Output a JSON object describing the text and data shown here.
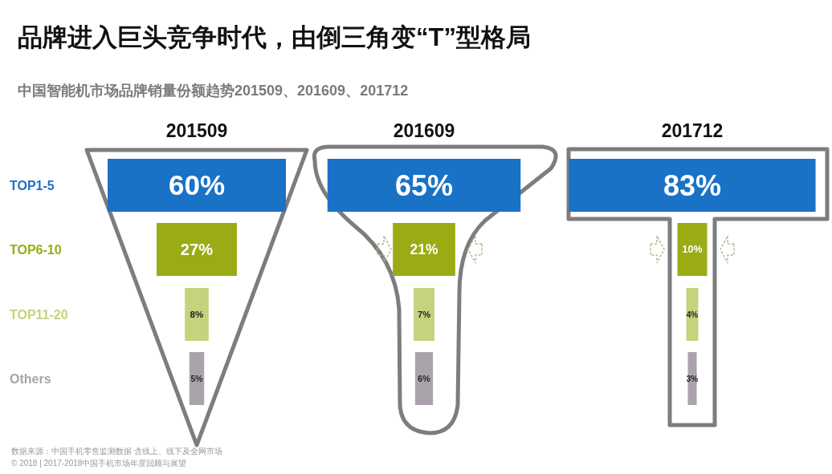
{
  "chart_data": [
    {
      "type": "other",
      "title": "品牌进入巨头竞争时代，由倒三角变“T”型格局",
      "subtitle": "中国智能机市场品牌销量份额趋势201509、201609、201712",
      "annotations": [
        "数据来源：中国手机零售监测数据 含线上、线下及全网市场",
        "© 2018 | 2017-2018中国手机市场年度回顾与展望"
      ]
    },
    {
      "type": "other",
      "title": "201509",
      "categories": [
        "TOP1-5",
        "TOP6-10",
        "TOP11-20",
        "Others"
      ],
      "values": [
        60,
        27,
        8,
        5
      ],
      "value_labels": [
        "60%",
        "27%",
        "8%",
        "5%"
      ],
      "colors": [
        "#1a72c6",
        "#9aab14",
        "#c6d27c",
        "#aaa3ac"
      ]
    },
    {
      "type": "other",
      "title": "201609",
      "categories": [
        null,
        null,
        null,
        null
      ],
      "values": [
        65,
        21,
        7,
        6
      ],
      "value_labels": [
        "65%",
        "21%",
        "7%",
        "6%"
      ],
      "colors": [
        "#1a72c6",
        "#9aab14",
        "#c6d27c",
        "#aaa3ac"
      ]
    },
    {
      "type": "other",
      "title": "201712",
      "categories": [
        null,
        null,
        null,
        null
      ],
      "values": [
        83,
        10,
        4,
        3
      ],
      "value_labels": [
        "83%",
        "10%",
        "4%",
        "3%"
      ],
      "colors": [
        "#1a72c6",
        "#9aab14",
        "#c6d27c",
        "#aaa3ac"
      ]
    }
  ]
}
